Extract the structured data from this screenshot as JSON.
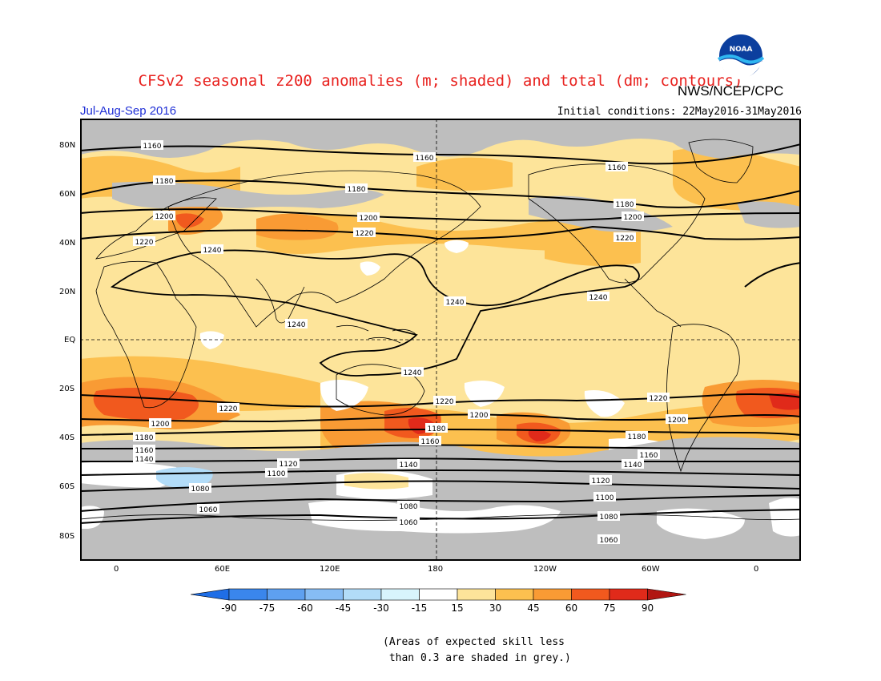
{
  "header": {
    "title": "CFSv2 seasonal z200 anomalies (m; shaded) and total (dm; contours)",
    "org": "NWS/NCEP/CPC",
    "period": "Jul-Aug-Sep 2016",
    "initial_conditions": "Initial conditions: 22May2016-31May2016",
    "logo_text": "NOAA"
  },
  "map": {
    "lat_labels": [
      "80N",
      "60N",
      "40N",
      "20N",
      "EQ",
      "20S",
      "40S",
      "60S",
      "80S"
    ],
    "lon_labels": [
      "0",
      "60E",
      "120E",
      "180",
      "120W",
      "60W",
      "0"
    ],
    "contour_labels": [
      "1160",
      "1160",
      "1160",
      "1180",
      "1180",
      "1180",
      "1200",
      "1200",
      "1200",
      "1220",
      "1220",
      "1220",
      "1240",
      "1240",
      "1240",
      "1240",
      "1240",
      "1220",
      "1220",
      "1200",
      "1200",
      "1220",
      "1200",
      "1180",
      "1180",
      "1180",
      "1160",
      "1160",
      "1160",
      "1140",
      "1140",
      "1140",
      "1120",
      "1120",
      "1100",
      "1100",
      "1080",
      "1080",
      "1080",
      "1060",
      "1060",
      "1060"
    ],
    "colors": {
      "grey_mask": "#bebebe",
      "land_outline": "#000000",
      "contour": "#000000"
    }
  },
  "colorbar": {
    "labels": [
      "-90",
      "-75",
      "-60",
      "-45",
      "-30",
      "-15",
      "15",
      "30",
      "45",
      "60",
      "75",
      "90"
    ],
    "colors": [
      "#1f6ee6",
      "#3a86ec",
      "#5ea0f0",
      "#86bcf4",
      "#b2dcf8",
      "#d8f4fc",
      "#ffffff",
      "#fde49a",
      "#fcc04f",
      "#f99b34",
      "#f1591e",
      "#e02a1a",
      "#b11612"
    ]
  },
  "footnote": "(Areas of expected skill less\n than 0.3 are shaded in grey.)"
}
